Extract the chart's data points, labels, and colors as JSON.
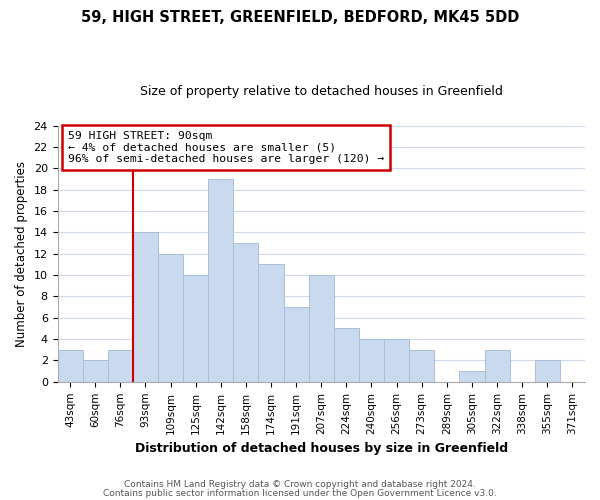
{
  "title": "59, HIGH STREET, GREENFIELD, BEDFORD, MK45 5DD",
  "subtitle": "Size of property relative to detached houses in Greenfield",
  "xlabel": "Distribution of detached houses by size in Greenfield",
  "ylabel": "Number of detached properties",
  "bin_labels": [
    "43sqm",
    "60sqm",
    "76sqm",
    "93sqm",
    "109sqm",
    "125sqm",
    "142sqm",
    "158sqm",
    "174sqm",
    "191sqm",
    "207sqm",
    "224sqm",
    "240sqm",
    "256sqm",
    "273sqm",
    "289sqm",
    "305sqm",
    "322sqm",
    "338sqm",
    "355sqm",
    "371sqm"
  ],
  "bar_heights": [
    3,
    2,
    3,
    14,
    12,
    10,
    19,
    13,
    11,
    7,
    10,
    5,
    4,
    4,
    3,
    0,
    1,
    3,
    0,
    2,
    0
  ],
  "bar_color": "#c9d9ee",
  "bar_edgecolor": "#a8bfd8",
  "vline_index": 3,
  "vline_color": "#cc0000",
  "ylim": [
    0,
    24
  ],
  "yticks": [
    0,
    2,
    4,
    6,
    8,
    10,
    12,
    14,
    16,
    18,
    20,
    22,
    24
  ],
  "annotation_line1": "59 HIGH STREET: 90sqm",
  "annotation_line2": "← 4% of detached houses are smaller (5)",
  "annotation_line3": "96% of semi-detached houses are larger (120) →",
  "annotation_box_color": "#ffffff",
  "annotation_box_edgecolor": "#cc0000",
  "footer1": "Contains HM Land Registry data © Crown copyright and database right 2024.",
  "footer2": "Contains public sector information licensed under the Open Government Licence v3.0.",
  "background_color": "#ffffff",
  "grid_color": "#cdd8ec"
}
